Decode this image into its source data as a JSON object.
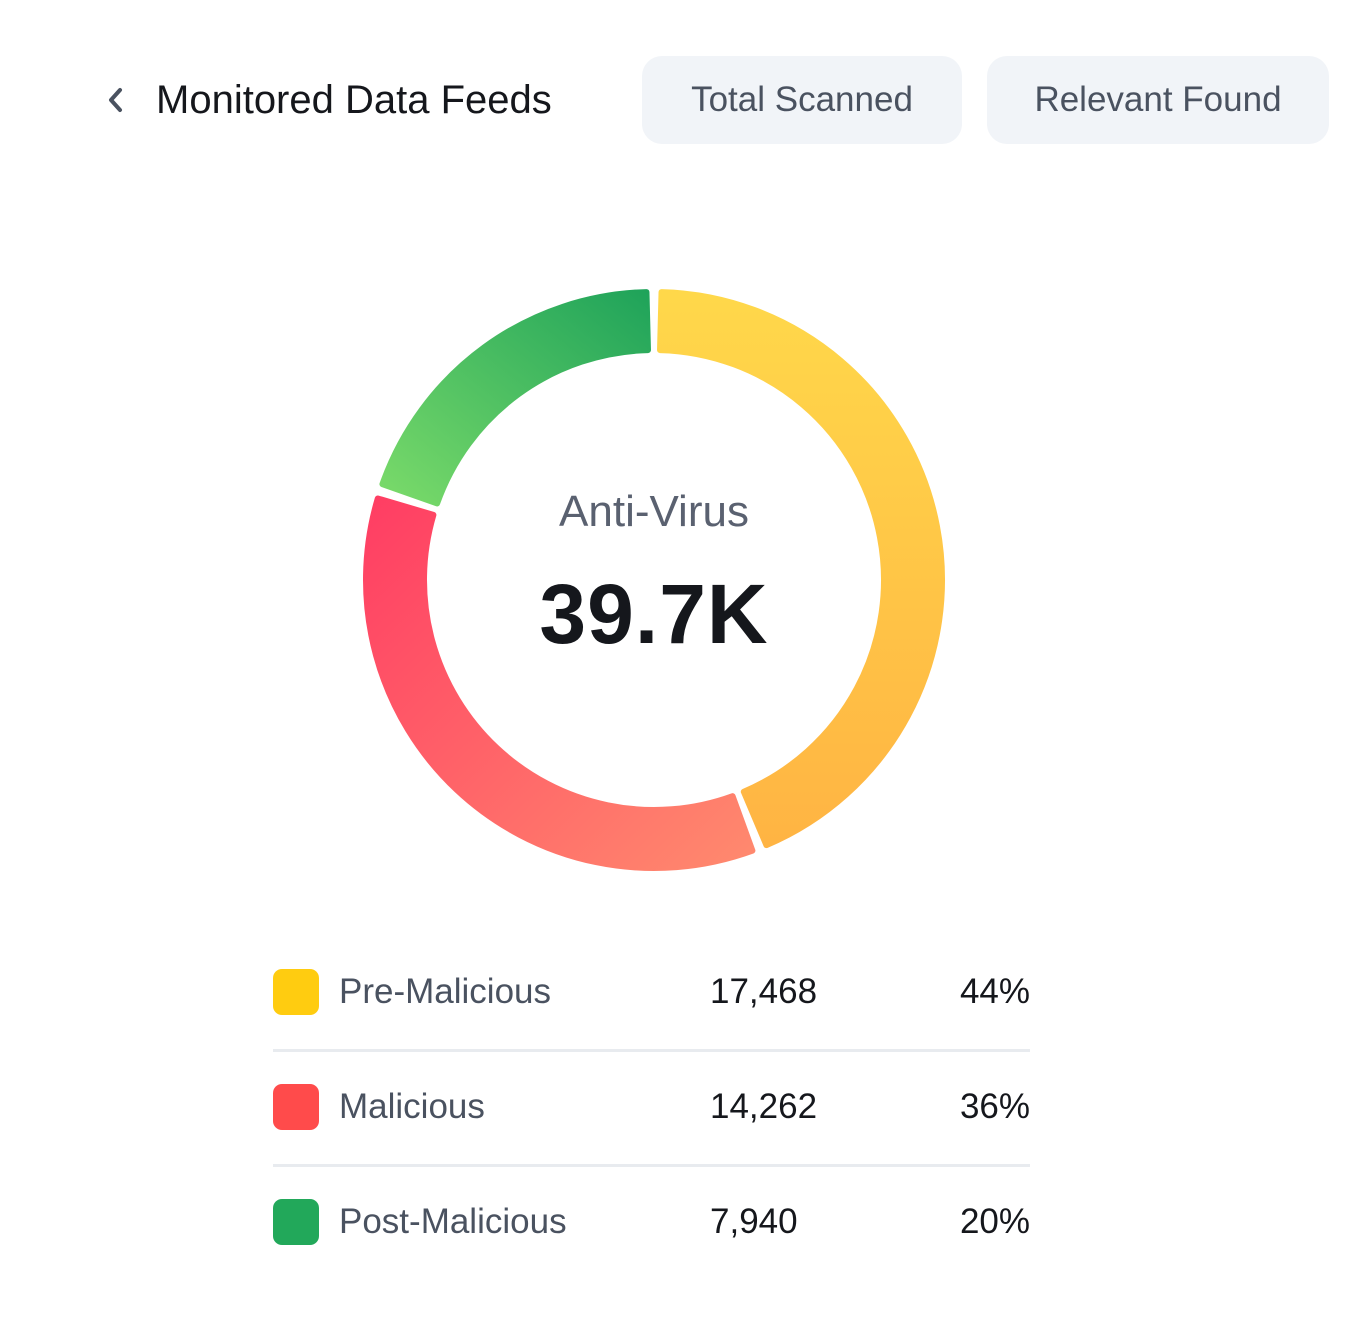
{
  "header": {
    "title": "Monitored Data Feeds",
    "back_icon": "chevron-left-icon",
    "tabs": [
      {
        "label": "Total Scanned"
      },
      {
        "label": "Relevant Found"
      }
    ]
  },
  "donut": {
    "center_label": "Anti-Virus",
    "center_value": "39.7K"
  },
  "chart_data": {
    "type": "pie",
    "categories": [
      "Pre-Malicious",
      "Malicious",
      "Post-Malicious"
    ],
    "values": [
      17468,
      14262,
      7940
    ],
    "percentages": [
      "44%",
      "36%",
      "20%"
    ],
    "colors": [
      "#FFCC10",
      "#FF4B4B",
      "#22A85A"
    ]
  },
  "legend": {
    "items": [
      {
        "name": "Pre-Malicious",
        "count": "17,468",
        "pct": "44%",
        "color": "#FFCC10"
      },
      {
        "name": "Malicious",
        "count": "14,262",
        "pct": "36%",
        "color": "#FF4B4B"
      },
      {
        "name": "Post-Malicious",
        "count": "7,940",
        "pct": "20%",
        "color": "#22A85A"
      }
    ]
  }
}
